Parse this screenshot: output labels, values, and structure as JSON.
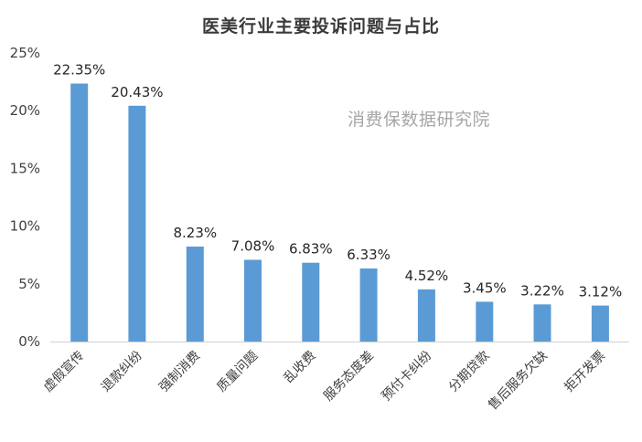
{
  "chart_data": {
    "type": "bar",
    "title": "医美行业主要投诉问题与占比",
    "watermark": "消费保数据研究院",
    "categories": [
      "虚假宣传",
      "退款纠纷",
      "强制消费",
      "质量问题",
      "乱收费",
      "服务态度差",
      "预付卡纠纷",
      "分期贷款",
      "售后服务欠缺",
      "拒开发票"
    ],
    "values": [
      22.35,
      20.43,
      8.23,
      7.08,
      6.83,
      6.33,
      4.52,
      3.45,
      3.22,
      3.12
    ],
    "value_labels": [
      "22.35%",
      "20.43%",
      "8.23%",
      "7.08%",
      "6.83%",
      "6.33%",
      "4.52%",
      "3.45%",
      "3.22%",
      "3.12%"
    ],
    "y_ticks": [
      0,
      5,
      10,
      15,
      20,
      25
    ],
    "y_tick_labels": [
      "0%",
      "5%",
      "10%",
      "15%",
      "20%",
      "25%"
    ],
    "ylim": [
      0,
      25
    ],
    "grid": false,
    "legend": "none",
    "bar_color": "#5b9bd5"
  }
}
